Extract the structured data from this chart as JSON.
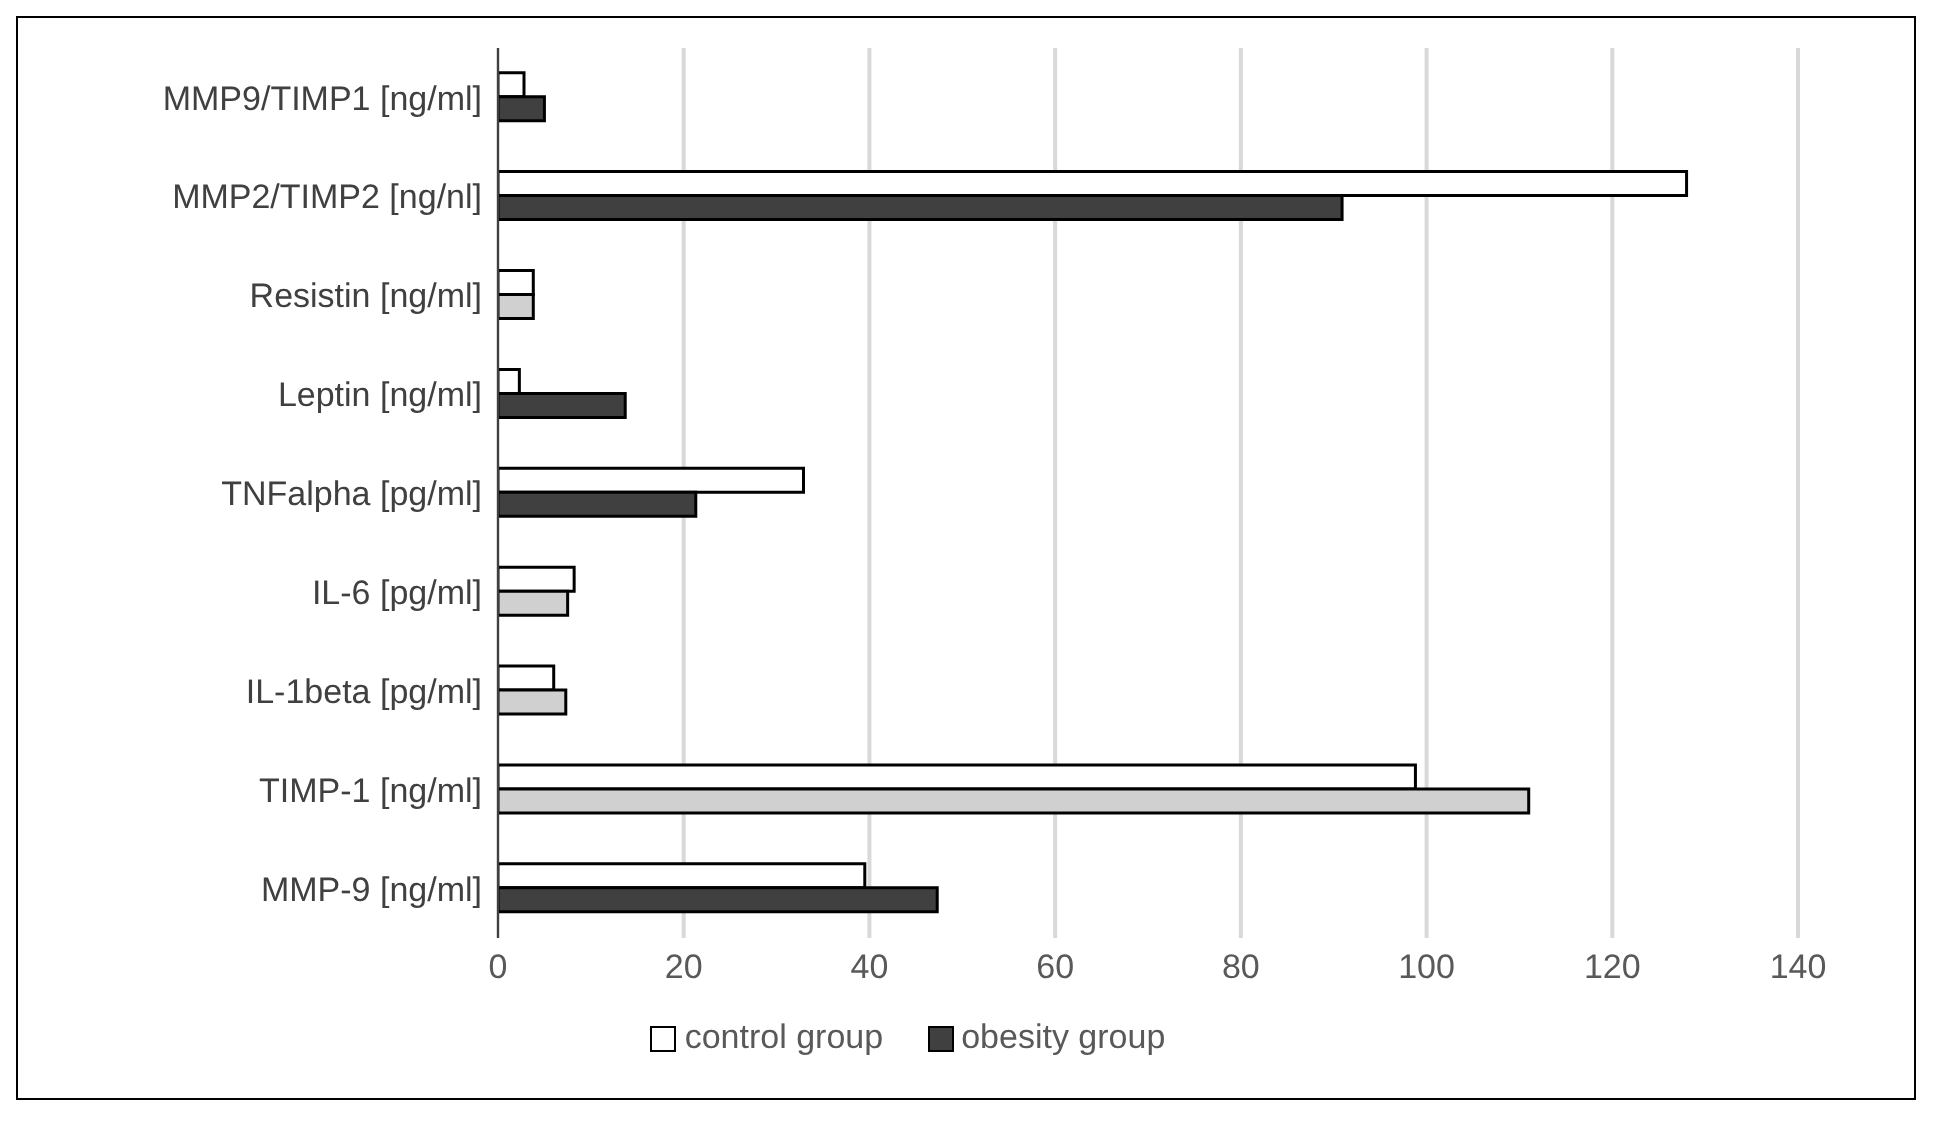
{
  "chart_data": {
    "type": "bar",
    "orientation": "horizontal",
    "categories": [
      "MMP9/TIMP1 [ng/ml]",
      "MMP2/TIMP2 [ng/nl]",
      "Resistin [ng/ml]",
      "Leptin [ng/ml]",
      "TNFalpha [pg/ml]",
      "IL-6 [pg/ml]",
      "IL-1beta [pg/ml]",
      "TIMP-1 [ng/ml]",
      "MMP-9 [ng/ml]"
    ],
    "series": [
      {
        "name": "control group",
        "color": "#ffffff",
        "values": [
          2.8,
          128,
          3.8,
          2.3,
          32.9,
          8.2,
          6.0,
          98.8,
          39.5
        ]
      },
      {
        "name": "obesity group",
        "color": "#404040",
        "colors": [
          "#404040",
          "#404040",
          "#d0d0d0",
          "#404040",
          "#404040",
          "#d0d0d0",
          "#d0d0d0",
          "#d0d0d0",
          "#404040"
        ],
        "values": [
          5.0,
          90.9,
          3.8,
          13.7,
          21.3,
          7.5,
          7.3,
          111,
          47.3
        ]
      }
    ],
    "xlim": [
      0,
      140
    ],
    "xticks": [
      0,
      20,
      40,
      60,
      80,
      100,
      120,
      140
    ],
    "grid": "x",
    "legend": "bottom"
  }
}
